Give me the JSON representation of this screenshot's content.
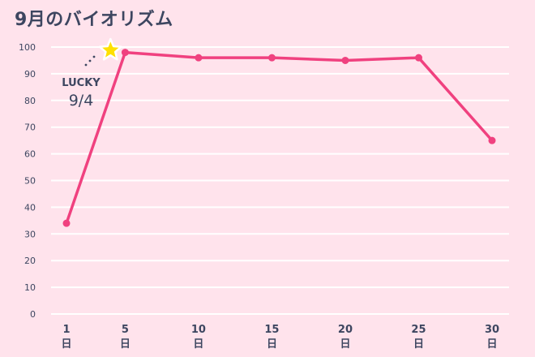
{
  "chart_data": {
    "type": "line",
    "title": "9月のバイオリズム",
    "x": [
      1,
      5,
      10,
      15,
      20,
      25,
      30
    ],
    "x_tick_labels": [
      {
        "num": "1",
        "unit": "日"
      },
      {
        "num": "5",
        "unit": "日"
      },
      {
        "num": "10",
        "unit": "日"
      },
      {
        "num": "15",
        "unit": "日"
      },
      {
        "num": "20",
        "unit": "日"
      },
      {
        "num": "25",
        "unit": "日"
      },
      {
        "num": "30",
        "unit": "日"
      }
    ],
    "series": [
      {
        "values": [
          34,
          98,
          96,
          96,
          95,
          96,
          65
        ]
      }
    ],
    "y_ticks": [
      "100",
      "90",
      "80",
      "70",
      "60",
      "50",
      "40",
      "30",
      "20",
      "10",
      "0"
    ],
    "ylim": [
      0,
      100
    ],
    "xlim": [
      1,
      30
    ],
    "grid": true,
    "legend": "none",
    "annotation": {
      "line1": "LUCKY",
      "line2": "9/4",
      "marker": "star-icon",
      "x": 4
    },
    "colors": {
      "background": "#ffe3ec",
      "line": "#f0417f",
      "grid": "#ffffff",
      "star": "#ffe000",
      "text": "#3d4660"
    }
  }
}
